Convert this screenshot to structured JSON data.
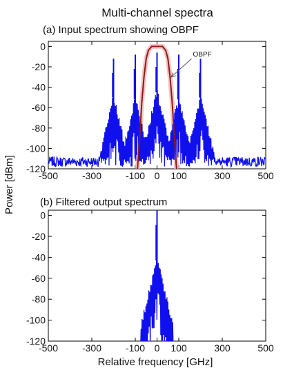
{
  "figure": {
    "title": "Multi-channel spectra",
    "ylabel": "Power [dBm]",
    "xlabel": "Relative frequency [GHz]"
  },
  "colors": {
    "spectrum": "#1010ee",
    "filter": "#8b1a1a",
    "filter_glow": "#f0b8b8"
  },
  "chart_data": [
    {
      "type": "line",
      "title": "(a) Input spectrum showing OBPF",
      "xlim": [
        -500,
        500
      ],
      "ylim": [
        -120,
        5
      ],
      "xticks": [
        -500,
        -300,
        -100,
        0,
        100,
        300,
        500
      ],
      "yticks": [
        0,
        -20,
        -40,
        -60,
        -80,
        -100,
        -120
      ],
      "noise_floor": [
        -118,
        -108
      ],
      "series": [
        {
          "kind": "spectrum",
          "channels": [
            {
              "center": -200,
              "peak": -12,
              "modulation_top": -45,
              "sideband_halfwidth": 70
            },
            {
              "center": -100,
              "peak": -8,
              "modulation_top": -47,
              "sideband_halfwidth": 70
            },
            {
              "center": 0,
              "peak": -6,
              "modulation_top": -40,
              "sideband_halfwidth": 70
            },
            {
              "center": 100,
              "peak": -8,
              "modulation_top": -47,
              "sideband_halfwidth": 70
            },
            {
              "center": 200,
              "peak": -12,
              "modulation_top": -45,
              "sideband_halfwidth": 70
            }
          ]
        },
        {
          "kind": "filter",
          "center": 0,
          "flat_top_halfwidth": 25,
          "points": [
            [
              -90,
              -120
            ],
            [
              -80,
              -90
            ],
            [
              -70,
              -55
            ],
            [
              -60,
              -30
            ],
            [
              -50,
              -12
            ],
            [
              -40,
              -4
            ],
            [
              -25,
              0
            ],
            [
              0,
              0
            ],
            [
              25,
              0
            ],
            [
              40,
              -4
            ],
            [
              50,
              -12
            ],
            [
              60,
              -30
            ],
            [
              70,
              -55
            ],
            [
              80,
              -90
            ],
            [
              90,
              -120
            ]
          ]
        }
      ],
      "annotations": [
        {
          "text": "OBPF",
          "x": 165,
          "y": -10,
          "arrow_to": [
            65,
            -30
          ]
        }
      ]
    },
    {
      "type": "line",
      "title": "(b) Filtered output spectrum",
      "xlim": [
        -500,
        500
      ],
      "ylim": [
        -120,
        5
      ],
      "xticks": [
        -500,
        -300,
        -100,
        0,
        100,
        300,
        500
      ],
      "yticks": [
        0,
        -20,
        -40,
        -60,
        -80,
        -100,
        -120
      ],
      "series": [
        {
          "kind": "spectrum",
          "channels": [
            {
              "center": 0,
              "peak": 5,
              "modulation_top": -38,
              "sideband_halfwidth": 75
            }
          ]
        }
      ]
    }
  ]
}
